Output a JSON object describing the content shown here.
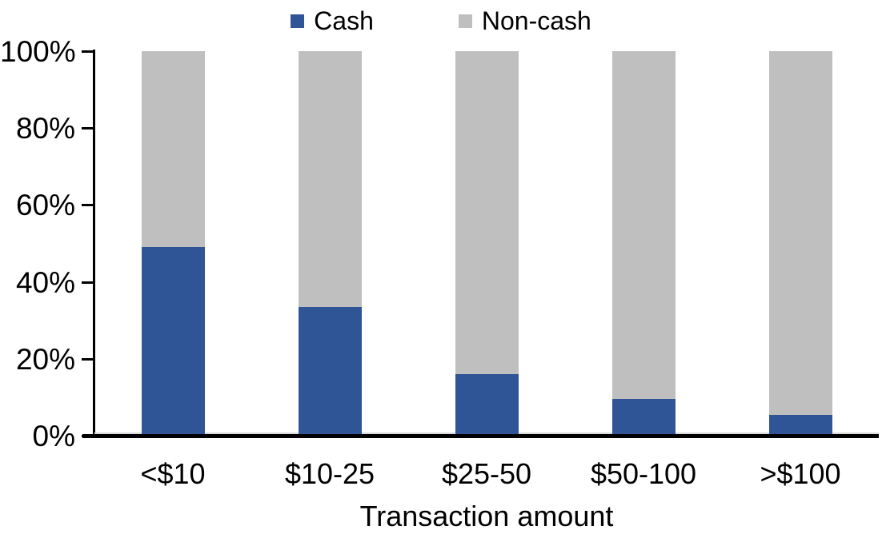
{
  "chart_data": {
    "type": "bar",
    "stacked": true,
    "percent_stacked": true,
    "title": "",
    "xlabel": "Transaction amount",
    "ylabel": "",
    "categories": [
      "<$10",
      "$10-25",
      "$25-50",
      "$50-100",
      ">$100"
    ],
    "series": [
      {
        "name": "Cash",
        "color": "#2F5597",
        "values": [
          49,
          33.5,
          16,
          9.5,
          5.5
        ]
      },
      {
        "name": "Non-cash",
        "color": "#BFBFBF",
        "values": [
          51,
          66.5,
          84,
          90.5,
          94.5
        ]
      }
    ],
    "ylim": [
      0,
      100
    ],
    "yticks": [
      0,
      20,
      40,
      60,
      80,
      100
    ],
    "ytick_labels": [
      "0%",
      "20%",
      "40%",
      "60%",
      "80%",
      "100%"
    ],
    "grid": false,
    "legend_position": "top-center"
  },
  "colors": {
    "axis": "#000000",
    "plot_bottom_border": "#D9D9D9",
    "background": "#FFFFFF"
  }
}
